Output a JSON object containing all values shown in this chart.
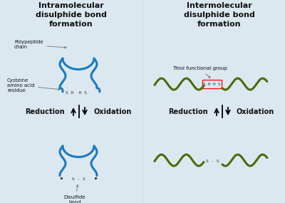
{
  "bg_color": "#dce8f0",
  "blue_color": "#1a7bbf",
  "green_color": "#4a6b0a",
  "text_color": "#111111",
  "title_left": "Intramolecular\ndisulphide bond\nformation",
  "title_right": "Intermolecular\ndisulphide bond\nformation",
  "label_polypeptide": "Polypeptide\nchain",
  "label_cysteine": "Cysteine\namino acid\nresidue",
  "label_thiol": "Thiol functional group",
  "label_disulfide": "Disulfide\nbond",
  "label_reduction": "Reduction",
  "label_oxidation": "Oxidation",
  "shhs_text": "S H H S",
  "ss_text": "S - S"
}
